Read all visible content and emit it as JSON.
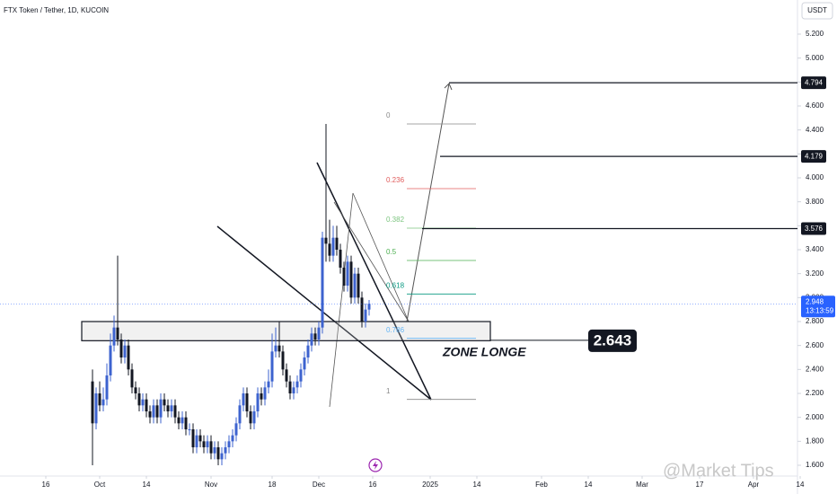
{
  "chart_data": {
    "type": "candlestick",
    "title": "FTX Token / Tether, 1D, KUCOIN",
    "currency": "USDT",
    "up_color": "#3d63cf",
    "down_color": "#131722",
    "candles": [
      [
        2.3,
        2.4,
        1.6,
        1.95
      ],
      [
        1.95,
        2.25,
        1.9,
        2.2
      ],
      [
        2.2,
        2.3,
        2.05,
        2.1
      ],
      [
        2.1,
        2.25,
        2.05,
        2.15
      ],
      [
        2.15,
        2.45,
        2.1,
        2.35
      ],
      [
        2.35,
        2.7,
        2.3,
        2.6
      ],
      [
        2.6,
        2.85,
        2.55,
        2.75
      ],
      [
        2.75,
        3.35,
        2.6,
        2.65
      ],
      [
        2.65,
        2.7,
        2.45,
        2.5
      ],
      [
        2.5,
        2.65,
        2.45,
        2.6
      ],
      [
        2.6,
        2.65,
        2.35,
        2.4
      ],
      [
        2.4,
        2.45,
        2.2,
        2.25
      ],
      [
        2.25,
        2.3,
        2.15,
        2.2
      ],
      [
        2.2,
        2.25,
        2.05,
        2.1
      ],
      [
        2.1,
        2.2,
        2.05,
        2.15
      ],
      [
        2.15,
        2.2,
        2.0,
        2.05
      ],
      [
        2.05,
        2.1,
        1.95,
        2.0
      ],
      [
        2.0,
        2.15,
        1.95,
        2.1
      ],
      [
        2.1,
        2.15,
        1.95,
        2.0
      ],
      [
        2.0,
        2.2,
        1.95,
        2.15
      ],
      [
        2.15,
        2.2,
        2.05,
        2.1
      ],
      [
        2.1,
        2.15,
        2.0,
        2.05
      ],
      [
        2.05,
        2.15,
        2.0,
        2.1
      ],
      [
        2.1,
        2.15,
        1.95,
        2.0
      ],
      [
        2.0,
        2.05,
        1.9,
        1.95
      ],
      [
        1.95,
        2.05,
        1.9,
        2.0
      ],
      [
        2.0,
        2.05,
        1.85,
        1.9
      ],
      [
        1.9,
        1.95,
        1.85,
        1.9
      ],
      [
        1.9,
        1.95,
        1.7,
        1.75
      ],
      [
        1.75,
        1.9,
        1.7,
        1.85
      ],
      [
        1.85,
        1.9,
        1.75,
        1.8
      ],
      [
        1.8,
        1.85,
        1.7,
        1.75
      ],
      [
        1.75,
        1.85,
        1.7,
        1.8
      ],
      [
        1.8,
        1.85,
        1.65,
        1.7
      ],
      [
        1.7,
        1.8,
        1.65,
        1.75
      ],
      [
        1.75,
        1.8,
        1.6,
        1.65
      ],
      [
        1.65,
        1.75,
        1.6,
        1.7
      ],
      [
        1.7,
        1.8,
        1.65,
        1.75
      ],
      [
        1.75,
        1.85,
        1.7,
        1.8
      ],
      [
        1.8,
        1.9,
        1.75,
        1.85
      ],
      [
        1.85,
        2.0,
        1.8,
        1.95
      ],
      [
        1.95,
        2.15,
        1.9,
        2.1
      ],
      [
        2.1,
        2.25,
        2.05,
        2.2
      ],
      [
        2.2,
        2.25,
        2.0,
        2.05
      ],
      [
        2.05,
        2.1,
        1.9,
        1.95
      ],
      [
        1.95,
        2.1,
        1.9,
        2.05
      ],
      [
        2.05,
        2.25,
        2.0,
        2.2
      ],
      [
        2.2,
        2.25,
        2.1,
        2.15
      ],
      [
        2.15,
        2.3,
        2.1,
        2.25
      ],
      [
        2.25,
        2.4,
        2.2,
        2.3
      ],
      [
        2.3,
        2.7,
        2.25,
        2.55
      ],
      [
        2.55,
        2.75,
        2.5,
        2.6
      ],
      [
        2.6,
        2.8,
        2.5,
        2.55
      ],
      [
        2.55,
        2.6,
        2.35,
        2.4
      ],
      [
        2.4,
        2.45,
        2.25,
        2.3
      ],
      [
        2.3,
        2.35,
        2.15,
        2.2
      ],
      [
        2.2,
        2.3,
        2.15,
        2.25
      ],
      [
        2.25,
        2.35,
        2.2,
        2.3
      ],
      [
        2.3,
        2.45,
        2.25,
        2.4
      ],
      [
        2.4,
        2.55,
        2.35,
        2.5
      ],
      [
        2.5,
        2.65,
        2.45,
        2.6
      ],
      [
        2.6,
        2.75,
        2.55,
        2.7
      ],
      [
        2.7,
        2.75,
        2.6,
        2.65
      ],
      [
        2.65,
        2.8,
        2.6,
        2.75
      ],
      [
        2.75,
        3.55,
        2.7,
        3.5
      ],
      [
        3.5,
        4.45,
        3.3,
        3.45
      ],
      [
        3.45,
        3.65,
        3.3,
        3.35
      ],
      [
        3.35,
        3.6,
        3.3,
        3.5
      ],
      [
        3.5,
        3.6,
        3.35,
        3.4
      ],
      [
        3.4,
        3.45,
        3.2,
        3.25
      ],
      [
        3.25,
        3.3,
        3.05,
        3.1
      ],
      [
        3.1,
        3.35,
        3.05,
        3.3
      ],
      [
        3.3,
        3.35,
        2.95,
        3.0
      ],
      [
        3.0,
        3.25,
        2.95,
        3.2
      ],
      [
        3.2,
        3.25,
        2.95,
        3.0
      ],
      [
        3.0,
        3.05,
        2.75,
        2.8
      ],
      [
        2.8,
        2.95,
        2.75,
        2.9
      ],
      [
        2.9,
        2.98,
        2.85,
        2.948
      ]
    ],
    "xlim": [
      -25.75,
      196.25
    ],
    "xticks": [
      {
        "value": -13,
        "label": "16"
      },
      {
        "value": 2,
        "label": "Oct"
      },
      {
        "value": 15,
        "label": "14"
      },
      {
        "value": 33,
        "label": "Nov"
      },
      {
        "value": 50,
        "label": "18"
      },
      {
        "value": 63,
        "label": "Dec"
      },
      {
        "value": 78,
        "label": "16"
      },
      {
        "value": 94,
        "label": "2025"
      },
      {
        "value": 107,
        "label": "14"
      },
      {
        "value": 125,
        "label": "Feb"
      },
      {
        "value": 138,
        "label": "14"
      },
      {
        "value": 153,
        "label": "Mar"
      },
      {
        "value": 169,
        "label": "17"
      },
      {
        "value": 184,
        "label": "Apr"
      },
      {
        "value": 197,
        "label": "14"
      }
    ],
    "ylim": [
      1.51,
      5.485
    ],
    "yticks": [
      {
        "value": 1.6,
        "label": "1.600"
      },
      {
        "value": 1.8,
        "label": "1.800"
      },
      {
        "value": 2.0,
        "label": "2.000"
      },
      {
        "value": 2.2,
        "label": "2.200"
      },
      {
        "value": 2.4,
        "label": "2.400"
      },
      {
        "value": 2.6,
        "label": "2.600"
      },
      {
        "value": 2.8,
        "label": "2.800"
      },
      {
        "value": 3.0,
        "label": "3.000"
      },
      {
        "value": 3.2,
        "label": "3.200"
      },
      {
        "value": 3.4,
        "label": "3.400"
      },
      {
        "value": 3.6,
        "label": "3.600"
      },
      {
        "value": 3.8,
        "label": "3.800"
      },
      {
        "value": 4.0,
        "label": "4.000"
      },
      {
        "value": 4.2,
        "label": "4.200"
      },
      {
        "value": 4.4,
        "label": "4.400"
      },
      {
        "value": 4.6,
        "label": "4.600"
      },
      {
        "value": 4.8,
        "label": "4.800"
      },
      {
        "value": 5.0,
        "label": "5.000"
      },
      {
        "value": 5.2,
        "label": "5.200"
      }
    ],
    "targets": [
      4.794,
      4.179,
      3.576
    ],
    "current_price": {
      "value": 2.948,
      "countdown": "13:13:59",
      "color": "#2962ff"
    },
    "fib": {
      "levels": [
        0,
        0.236,
        0.382,
        0.5,
        0.618,
        0.786,
        1
      ],
      "prices": [
        4.45,
        3.91,
        3.58,
        3.31,
        3.03,
        2.66,
        2.15
      ],
      "colors": [
        "#888888",
        "#e05c5c",
        "#7cc47f",
        "#4caf50",
        "#089981",
        "#64b5f6",
        "#888888"
      ]
    },
    "zone": {
      "top": 2.8,
      "bottom": 2.64,
      "entry": 2.643,
      "label": "ZONE LONGE"
    },
    "watermark": "@Market Tips"
  }
}
